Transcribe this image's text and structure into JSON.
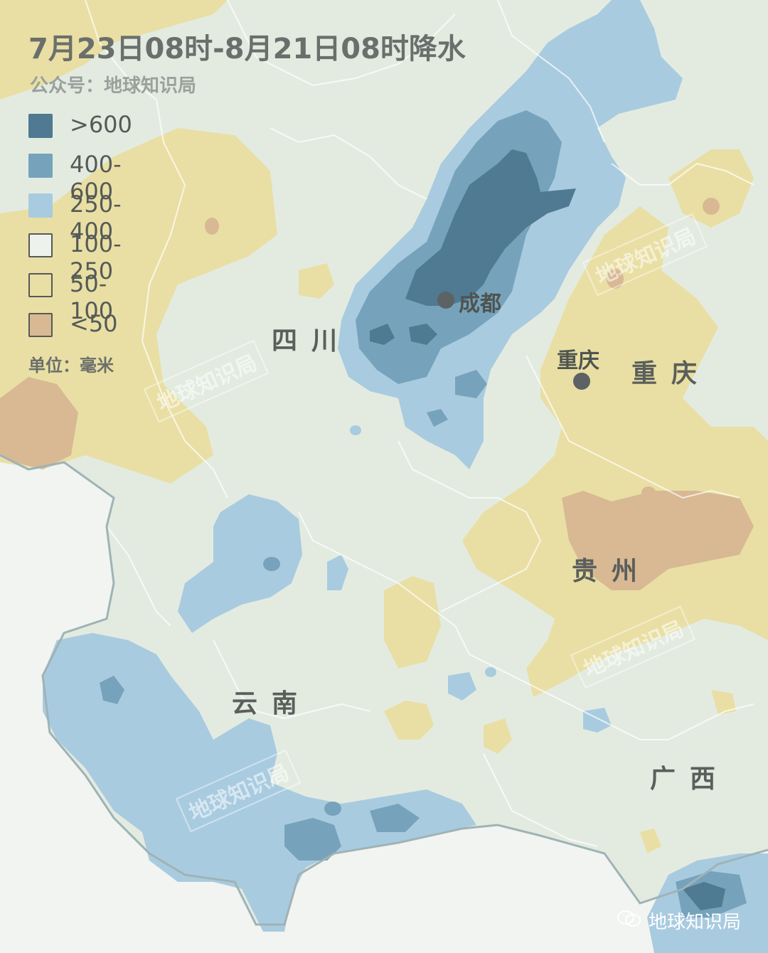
{
  "title": "7月23日08时-8月21日08时降水",
  "subtitle": "公众号：地球知识局",
  "unit": "单位：毫米",
  "legend": [
    {
      "label": ">600",
      "color": "#4f7a91"
    },
    {
      "label": "400-600",
      "color": "#76a3bb"
    },
    {
      "label": "250-400",
      "color": "#a9cbe0"
    },
    {
      "label": "100-250",
      "color": "#e3ebe1"
    },
    {
      "label": "50-100",
      "color": "#e9dfa4"
    },
    {
      "label": "<50",
      "color": "#d8b993"
    }
  ],
  "regions": {
    "sichuan": "四川",
    "chongqing": "重庆",
    "guizhou": "贵州",
    "yunnan": "云南",
    "guangxi": "广西"
  },
  "cities": {
    "chengdu": "成都",
    "chongqing": "重庆"
  },
  "watermark": "地球知识局",
  "credit": "地球知识局"
}
